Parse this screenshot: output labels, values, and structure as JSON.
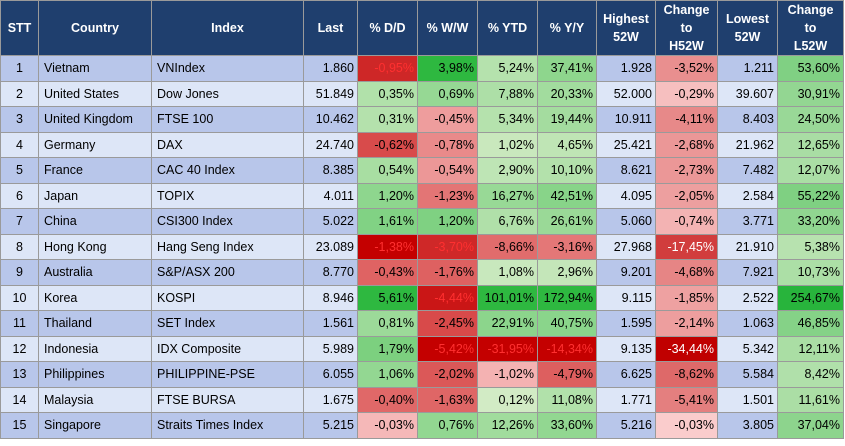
{
  "headers": [
    "STT",
    "Country",
    "Index",
    "Last",
    "% D/D",
    "% W/W",
    "% YTD",
    "% Y/Y",
    "Highest\n52W",
    "Change\nto\nH52W",
    "Lowest\n52W",
    "Change\nto\nL52W"
  ],
  "rows": [
    {
      "stt": "1",
      "country": "Vietnam",
      "index": "VNIndex",
      "last": "1.860",
      "dd": "-0,95%",
      "ww": "3,98%",
      "ytd": "5,24%",
      "yy": "37,41%",
      "high": "1.928",
      "ch": "-3,52%",
      "low": "1.211",
      "cl": "53,60%"
    },
    {
      "stt": "2",
      "country": "United States",
      "index": "Dow Jones",
      "last": "51.849",
      "dd": "0,35%",
      "ww": "0,69%",
      "ytd": "7,88%",
      "yy": "20,33%",
      "high": "52.000",
      "ch": "-0,29%",
      "low": "39.607",
      "cl": "30,91%"
    },
    {
      "stt": "3",
      "country": "United Kingdom",
      "index": "FTSE 100",
      "last": "10.462",
      "dd": "0,31%",
      "ww": "-0,45%",
      "ytd": "5,34%",
      "yy": "19,44%",
      "high": "10.911",
      "ch": "-4,11%",
      "low": "8.403",
      "cl": "24,50%"
    },
    {
      "stt": "4",
      "country": "Germany",
      "index": "DAX",
      "last": "24.740",
      "dd": "-0,62%",
      "ww": "-0,78%",
      "ytd": "1,02%",
      "yy": "4,65%",
      "high": "25.421",
      "ch": "-2,68%",
      "low": "21.962",
      "cl": "12,65%"
    },
    {
      "stt": "5",
      "country": "France",
      "index": "CAC 40 Index",
      "last": "8.385",
      "dd": "0,54%",
      "ww": "-0,54%",
      "ytd": "2,90%",
      "yy": "10,10%",
      "high": "8.621",
      "ch": "-2,73%",
      "low": "7.482",
      "cl": "12,07%"
    },
    {
      "stt": "6",
      "country": "Japan",
      "index": "TOPIX",
      "last": "4.011",
      "dd": "1,20%",
      "ww": "-1,23%",
      "ytd": "16,27%",
      "yy": "42,51%",
      "high": "4.095",
      "ch": "-2,05%",
      "low": "2.584",
      "cl": "55,22%"
    },
    {
      "stt": "7",
      "country": "China",
      "index": "CSI300 Index",
      "last": "5.022",
      "dd": "1,61%",
      "ww": "1,20%",
      "ytd": "6,76%",
      "yy": "26,61%",
      "high": "5.060",
      "ch": "-0,74%",
      "low": "3.771",
      "cl": "33,20%"
    },
    {
      "stt": "8",
      "country": "Hong Kong",
      "index": "Hang Seng Index",
      "last": "23.089",
      "dd": "-1,38%",
      "ww": "-3,70%",
      "ytd": "-8,66%",
      "yy": "-3,16%",
      "high": "27.968",
      "ch": "-17,45%",
      "low": "21.910",
      "cl": "5,38%"
    },
    {
      "stt": "9",
      "country": "Australia",
      "index": "S&P/ASX 200",
      "last": "8.770",
      "dd": "-0,43%",
      "ww": "-1,76%",
      "ytd": "1,08%",
      "yy": "2,96%",
      "high": "9.201",
      "ch": "-4,68%",
      "low": "7.921",
      "cl": "10,73%"
    },
    {
      "stt": "10",
      "country": "Korea",
      "index": "KOSPI",
      "last": "8.946",
      "dd": "5,61%",
      "ww": "-4,44%",
      "ytd": "101,01%",
      "yy": "172,94%",
      "high": "9.115",
      "ch": "-1,85%",
      "low": "2.522",
      "cl": "254,67%"
    },
    {
      "stt": "11",
      "country": "Thailand",
      "index": "SET Index",
      "last": "1.561",
      "dd": "0,81%",
      "ww": "-2,45%",
      "ytd": "22,91%",
      "yy": "40,75%",
      "high": "1.595",
      "ch": "-2,14%",
      "low": "1.063",
      "cl": "46,85%"
    },
    {
      "stt": "12",
      "country": "Indonesia",
      "index": "IDX Composite",
      "last": "5.989",
      "dd": "1,79%",
      "ww": "-5,42%",
      "ytd": "-31,95%",
      "yy": "-14,34%",
      "high": "9.135",
      "ch": "-34,44%",
      "low": "5.342",
      "cl": "12,11%"
    },
    {
      "stt": "13",
      "country": "Philippines",
      "index": "PHILIPPINE-PSE",
      "last": "6.055",
      "dd": "1,06%",
      "ww": "-2,02%",
      "ytd": "-1,02%",
      "yy": "-4,79%",
      "high": "6.625",
      "ch": "-8,62%",
      "low": "5.584",
      "cl": "8,42%"
    },
    {
      "stt": "14",
      "country": "Malaysia",
      "index": "FTSE BURSA",
      "last": "1.675",
      "dd": "-0,40%",
      "ww": "-1,63%",
      "ytd": "0,12%",
      "yy": "11,08%",
      "high": "1.771",
      "ch": "-5,41%",
      "low": "1.501",
      "cl": "11,61%"
    },
    {
      "stt": "15",
      "country": "Singapore",
      "index": "Straits Times Index",
      "last": "5.215",
      "dd": "-0,03%",
      "ww": "0,76%",
      "ytd": "12,26%",
      "yy": "33,60%",
      "high": "5.216",
      "ch": "-0,03%",
      "low": "3.805",
      "cl": "37,04%"
    }
  ]
}
